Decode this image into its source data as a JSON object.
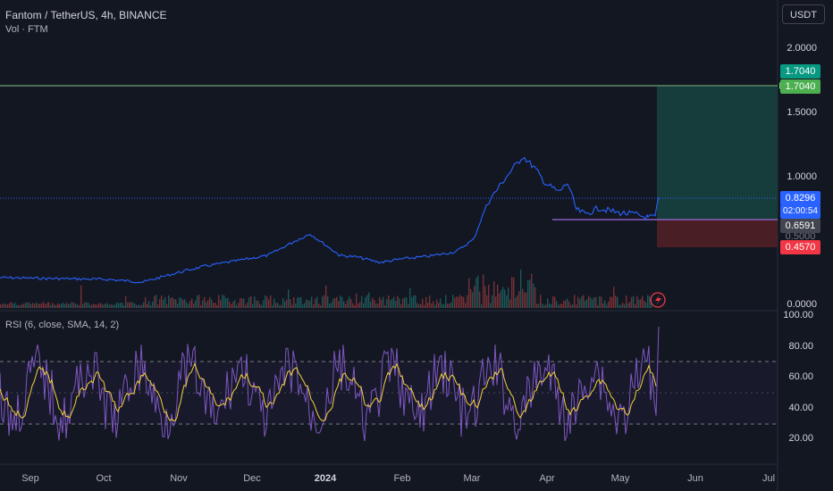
{
  "header": {
    "title": "Fantom / TetherUS, 4h, BINANCE",
    "volume_label": "Vol · FTM",
    "currency": "USDT"
  },
  "price_axis": [
    "2.0000",
    "1.5000",
    "1.0000",
    "0.0000"
  ],
  "price_tags": {
    "target_top": "1.7040",
    "target_line": "1.7040",
    "current_price": "0.8296",
    "countdown": "02:00:54",
    "entry": "0.6591",
    "partial_hidden": "0.5000",
    "stop": "0.4570"
  },
  "rsi": {
    "label": "RSI (6, close, SMA, 14, 2)",
    "axis": [
      "100.00",
      "80.00",
      "60.00",
      "40.00",
      "20.00"
    ]
  },
  "time_axis": [
    "Sep",
    "Oct",
    "Nov",
    "Dec",
    "2024",
    "Feb",
    "Mar",
    "Apr",
    "May",
    "Jun",
    "Jul"
  ],
  "colors": {
    "background": "#131722",
    "price_line": "#2962ff",
    "target_line": "#81c784",
    "profit_zone": "#163d3b",
    "loss_zone": "#4a1e25",
    "rsi_line": "#7e57c2",
    "rsi_ma": "#f5d13b",
    "green_tag": "#089981",
    "red_tag": "#f23645",
    "blue_tag": "#2962ff"
  },
  "icons": [
    "lightning-icon"
  ]
}
